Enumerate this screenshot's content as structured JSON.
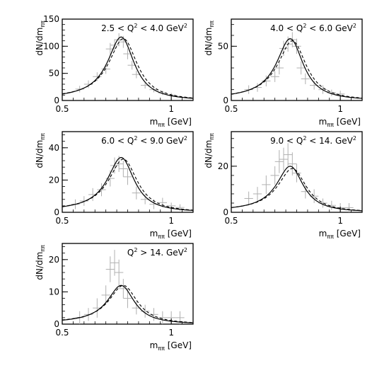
{
  "chart_data": [
    {
      "type": "line",
      "title": "2.5 < Q² < 4.0 GeV²",
      "title_parts": {
        "pre": "2.5 < Q",
        "sup": "2",
        "post": " < 4.0 GeV",
        "sup2": "2"
      },
      "xlabel": {
        "main": "m",
        "sub": "ππ",
        "unit": "[GeV]"
      },
      "ylabel": {
        "main": "dN/dm",
        "sub": "ππ"
      },
      "xlim": [
        0.5,
        1.1
      ],
      "ylim": [
        0,
        150
      ],
      "xticks": [
        0.5,
        1
      ],
      "xtick_labels": [
        "0.5",
        "1"
      ],
      "yticks": [
        0,
        50,
        100,
        150
      ],
      "ytick_labels": [
        "0",
        "50",
        "100",
        "150"
      ],
      "peak": {
        "solid": 117,
        "dashed": 114,
        "mass": 0.77
      },
      "points": [
        [
          0.58,
          21
        ],
        [
          0.62,
          30
        ],
        [
          0.66,
          44
        ],
        [
          0.7,
          58
        ],
        [
          0.72,
          95
        ],
        [
          0.74,
          102
        ],
        [
          0.76,
          112
        ],
        [
          0.78,
          108
        ],
        [
          0.8,
          86
        ],
        [
          0.82,
          65
        ],
        [
          0.84,
          48
        ],
        [
          0.88,
          28
        ],
        [
          0.92,
          20
        ],
        [
          0.96,
          14
        ],
        [
          1.0,
          10
        ]
      ],
      "errors": [
        [
          0.02,
          6
        ],
        [
          0.02,
          7
        ],
        [
          0.02,
          8
        ],
        [
          0.02,
          9
        ],
        [
          0.02,
          11
        ],
        [
          0.02,
          11
        ],
        [
          0.02,
          12
        ],
        [
          0.02,
          11
        ],
        [
          0.02,
          10
        ],
        [
          0.02,
          8
        ],
        [
          0.02,
          7
        ],
        [
          0.02,
          6
        ],
        [
          0.02,
          5
        ],
        [
          0.02,
          4
        ],
        [
          0.02,
          4
        ]
      ]
    },
    {
      "type": "line",
      "title": "4.0 < Q² < 6.0 GeV²",
      "title_parts": {
        "pre": "4.0 < Q",
        "sup": "2",
        "post": " < 6.0 GeV",
        "sup2": "2"
      },
      "xlabel": {
        "main": "m",
        "sub": "ππ",
        "unit": "[GeV]"
      },
      "ylabel": {
        "main": "dN/dm",
        "sub": "ππ"
      },
      "xlim": [
        0.5,
        1.1
      ],
      "ylim": [
        0,
        75
      ],
      "xticks": [
        0.5,
        1
      ],
      "xtick_labels": [
        "0.5",
        "1"
      ],
      "yticks": [
        0,
        50
      ],
      "ytick_labels": [
        "0",
        "50"
      ],
      "peak": {
        "solid": 57,
        "dashed": 55,
        "mass": 0.77
      },
      "points": [
        [
          0.58,
          10
        ],
        [
          0.62,
          12
        ],
        [
          0.66,
          18
        ],
        [
          0.7,
          22
        ],
        [
          0.72,
          30
        ],
        [
          0.74,
          48
        ],
        [
          0.76,
          52
        ],
        [
          0.78,
          56
        ],
        [
          0.8,
          50
        ],
        [
          0.82,
          30
        ],
        [
          0.84,
          20
        ],
        [
          0.88,
          14
        ],
        [
          0.92,
          10
        ],
        [
          0.96,
          7
        ],
        [
          1.0,
          6
        ]
      ],
      "errors": [
        [
          0.02,
          4
        ],
        [
          0.02,
          4
        ],
        [
          0.02,
          5
        ],
        [
          0.02,
          5
        ],
        [
          0.02,
          6
        ],
        [
          0.02,
          7
        ],
        [
          0.02,
          7
        ],
        [
          0.02,
          7
        ],
        [
          0.02,
          7
        ],
        [
          0.02,
          6
        ],
        [
          0.02,
          5
        ],
        [
          0.02,
          4
        ],
        [
          0.02,
          4
        ],
        [
          0.02,
          3
        ],
        [
          0.02,
          3
        ]
      ]
    },
    {
      "type": "line",
      "title": "6.0 < Q² < 9.0 GeV²",
      "title_parts": {
        "pre": "6.0 < Q",
        "sup": "2",
        "post": " < 9.0 GeV",
        "sup2": "2"
      },
      "xlabel": {
        "main": "m",
        "sub": "ππ",
        "unit": "[GeV]"
      },
      "ylabel": {
        "main": "dN/dm",
        "sub": "ππ"
      },
      "xlim": [
        0.5,
        1.1
      ],
      "ylim": [
        0,
        50
      ],
      "xticks": [
        0.5,
        1
      ],
      "xtick_labels": [
        "0.5",
        "1"
      ],
      "yticks": [
        0,
        20,
        40
      ],
      "ytick_labels": [
        "0",
        "20",
        "40"
      ],
      "peak": {
        "solid": 34,
        "dashed": 33,
        "mass": 0.77
      },
      "points": [
        [
          0.56,
          5
        ],
        [
          0.6,
          7
        ],
        [
          0.64,
          11
        ],
        [
          0.68,
          14
        ],
        [
          0.72,
          21
        ],
        [
          0.74,
          29
        ],
        [
          0.76,
          30
        ],
        [
          0.78,
          27
        ],
        [
          0.8,
          22
        ],
        [
          0.84,
          12
        ],
        [
          0.88,
          8
        ],
        [
          0.92,
          5
        ],
        [
          0.96,
          6
        ],
        [
          1.0,
          4
        ],
        [
          1.04,
          3
        ]
      ],
      "errors": [
        [
          0.02,
          3
        ],
        [
          0.02,
          3
        ],
        [
          0.02,
          4
        ],
        [
          0.02,
          4
        ],
        [
          0.02,
          5
        ],
        [
          0.02,
          5
        ],
        [
          0.02,
          5
        ],
        [
          0.02,
          5
        ],
        [
          0.02,
          5
        ],
        [
          0.02,
          4
        ],
        [
          0.02,
          3
        ],
        [
          0.02,
          3
        ],
        [
          0.02,
          3
        ],
        [
          0.02,
          2
        ],
        [
          0.02,
          2
        ]
      ]
    },
    {
      "type": "line",
      "title": "9.0 < Q² < 14. GeV²",
      "title_parts": {
        "pre": "9.0 < Q",
        "sup": "2",
        "post": " < 14. GeV",
        "sup2": "2"
      },
      "xlabel": {
        "main": "m",
        "sub": "ππ",
        "unit": "[GeV]"
      },
      "ylabel": {
        "main": "dN/dm",
        "sub": "ππ"
      },
      "xlim": [
        0.5,
        1.1
      ],
      "ylim": [
        0,
        35
      ],
      "xticks": [
        0.5,
        1
      ],
      "xtick_labels": [
        "0.5",
        "1"
      ],
      "yticks": [
        0,
        20
      ],
      "ytick_labels": [
        "0",
        "20"
      ],
      "peak": {
        "solid": 20,
        "dashed": 19,
        "mass": 0.77
      },
      "points": [
        [
          0.58,
          6
        ],
        [
          0.62,
          8
        ],
        [
          0.66,
          12
        ],
        [
          0.7,
          16
        ],
        [
          0.72,
          22
        ],
        [
          0.74,
          23
        ],
        [
          0.76,
          25
        ],
        [
          0.78,
          21
        ],
        [
          0.8,
          17
        ],
        [
          0.84,
          9
        ],
        [
          0.88,
          7
        ],
        [
          0.92,
          4
        ],
        [
          0.96,
          3
        ],
        [
          1.0,
          2
        ],
        [
          1.04,
          2
        ]
      ],
      "errors": [
        [
          0.02,
          3
        ],
        [
          0.02,
          3
        ],
        [
          0.02,
          4
        ],
        [
          0.02,
          4
        ],
        [
          0.02,
          5
        ],
        [
          0.02,
          5
        ],
        [
          0.02,
          5
        ],
        [
          0.02,
          5
        ],
        [
          0.02,
          4
        ],
        [
          0.02,
          3
        ],
        [
          0.02,
          3
        ],
        [
          0.02,
          2
        ],
        [
          0.02,
          2
        ],
        [
          0.02,
          2
        ],
        [
          0.02,
          2
        ]
      ]
    },
    {
      "type": "line",
      "title": "Q² > 14. GeV²",
      "title_parts": {
        "pre": "Q",
        "sup": "2",
        "post": " > 14. GeV",
        "sup2": "2"
      },
      "xlabel": {
        "main": "m",
        "sub": "ππ",
        "unit": "[GeV]"
      },
      "ylabel": {
        "main": "dN/dm",
        "sub": "ππ"
      },
      "xlim": [
        0.5,
        1.1
      ],
      "ylim": [
        0,
        25
      ],
      "xticks": [
        0.5,
        1
      ],
      "xtick_labels": [
        "0.5",
        "1"
      ],
      "yticks": [
        0,
        10,
        20
      ],
      "ytick_labels": [
        "0",
        "10",
        "20"
      ],
      "peak": {
        "solid": 12,
        "dashed": 12,
        "mass": 0.77
      },
      "points": [
        [
          0.58,
          2
        ],
        [
          0.62,
          3
        ],
        [
          0.66,
          5
        ],
        [
          0.7,
          9
        ],
        [
          0.72,
          17
        ],
        [
          0.74,
          19
        ],
        [
          0.76,
          16
        ],
        [
          0.78,
          11
        ],
        [
          0.8,
          8
        ],
        [
          0.84,
          5
        ],
        [
          0.88,
          4
        ],
        [
          0.92,
          3
        ],
        [
          0.96,
          2
        ],
        [
          1.0,
          2
        ],
        [
          1.04,
          2
        ]
      ],
      "errors": [
        [
          0.02,
          2
        ],
        [
          0.02,
          2
        ],
        [
          0.02,
          3
        ],
        [
          0.02,
          3
        ],
        [
          0.02,
          4
        ],
        [
          0.02,
          4
        ],
        [
          0.02,
          4
        ],
        [
          0.02,
          3
        ],
        [
          0.02,
          3
        ],
        [
          0.02,
          2
        ],
        [
          0.02,
          2
        ],
        [
          0.02,
          2
        ],
        [
          0.02,
          2
        ],
        [
          0.02,
          2
        ],
        [
          0.02,
          2
        ]
      ]
    }
  ]
}
